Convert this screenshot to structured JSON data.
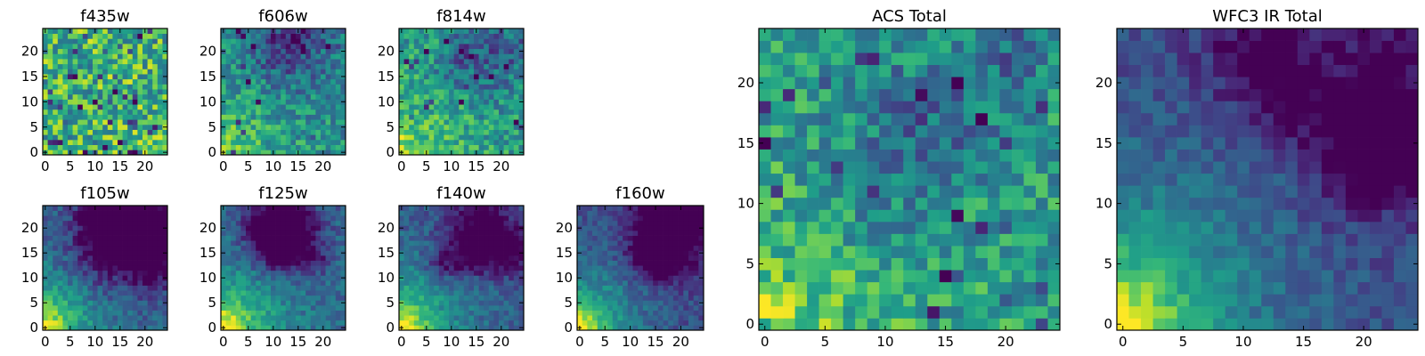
{
  "colormap": "viridis",
  "chart_data": [
    {
      "type": "heatmap",
      "title": "f435w",
      "grid": [
        25,
        25
      ],
      "xticks": [
        0,
        5,
        10,
        15,
        20
      ],
      "yticks": [
        0,
        5,
        10,
        15,
        20
      ],
      "xlim": [
        0,
        24
      ],
      "ylim": [
        0,
        24
      ],
      "pattern": "noise",
      "gradient": 0.15,
      "mean_level": 0.65
    },
    {
      "type": "heatmap",
      "title": "f606w",
      "grid": [
        25,
        25
      ],
      "xticks": [
        0,
        5,
        10,
        15,
        20
      ],
      "yticks": [
        0,
        5,
        10,
        15,
        20
      ],
      "xlim": [
        0,
        24
      ],
      "ylim": [
        0,
        24
      ],
      "pattern": "corner-bright",
      "gradient": 0.45,
      "mean_level": 0.55
    },
    {
      "type": "heatmap",
      "title": "f814w",
      "grid": [
        25,
        25
      ],
      "xticks": [
        0,
        5,
        10,
        15,
        20
      ],
      "yticks": [
        0,
        5,
        10,
        15,
        20
      ],
      "xlim": [
        0,
        24
      ],
      "ylim": [
        0,
        24
      ],
      "pattern": "corner-bright",
      "gradient": 0.45,
      "mean_level": 0.6
    },
    {
      "type": "heatmap",
      "title": "f105w",
      "grid": [
        25,
        25
      ],
      "xticks": [
        0,
        5,
        10,
        15,
        20
      ],
      "yticks": [
        0,
        5,
        10,
        15,
        20
      ],
      "xlim": [
        0,
        24
      ],
      "ylim": [
        0,
        24
      ],
      "pattern": "corner-bright",
      "gradient": 0.9,
      "mean_level": 0.4
    },
    {
      "type": "heatmap",
      "title": "f125w",
      "grid": [
        25,
        25
      ],
      "xticks": [
        0,
        5,
        10,
        15,
        20
      ],
      "yticks": [
        0,
        5,
        10,
        15,
        20
      ],
      "xlim": [
        0,
        24
      ],
      "ylim": [
        0,
        24
      ],
      "pattern": "corner-bright",
      "gradient": 0.9,
      "mean_level": 0.45
    },
    {
      "type": "heatmap",
      "title": "f140w",
      "grid": [
        25,
        25
      ],
      "xticks": [
        0,
        5,
        10,
        15,
        20
      ],
      "yticks": [
        0,
        5,
        10,
        15,
        20
      ],
      "xlim": [
        0,
        24
      ],
      "ylim": [
        0,
        24
      ],
      "pattern": "corner-bright",
      "gradient": 0.95,
      "mean_level": 0.4
    },
    {
      "type": "heatmap",
      "title": "f160w",
      "grid": [
        25,
        25
      ],
      "xticks": [
        0,
        5,
        10,
        15,
        20
      ],
      "yticks": [
        0,
        5,
        10,
        15,
        20
      ],
      "xlim": [
        0,
        24
      ],
      "ylim": [
        0,
        24
      ],
      "pattern": "corner-bright",
      "gradient": 1.0,
      "mean_level": 0.35
    },
    {
      "type": "heatmap",
      "title": "ACS Total",
      "grid": [
        25,
        25
      ],
      "xticks": [
        0,
        5,
        10,
        15,
        20
      ],
      "yticks": [
        0,
        5,
        10,
        15,
        20
      ],
      "xlim": [
        0,
        24
      ],
      "ylim": [
        0,
        24
      ],
      "pattern": "corner-bright",
      "gradient": 0.4,
      "mean_level": 0.6
    },
    {
      "type": "heatmap",
      "title": "WFC3 IR Total",
      "grid": [
        25,
        25
      ],
      "xticks": [
        0,
        5,
        10,
        15,
        20
      ],
      "yticks": [
        0,
        5,
        10,
        15,
        20
      ],
      "xlim": [
        0,
        24
      ],
      "ylim": [
        0,
        24
      ],
      "pattern": "corner-bright",
      "gradient": 1.0,
      "mean_level": 0.35
    }
  ]
}
